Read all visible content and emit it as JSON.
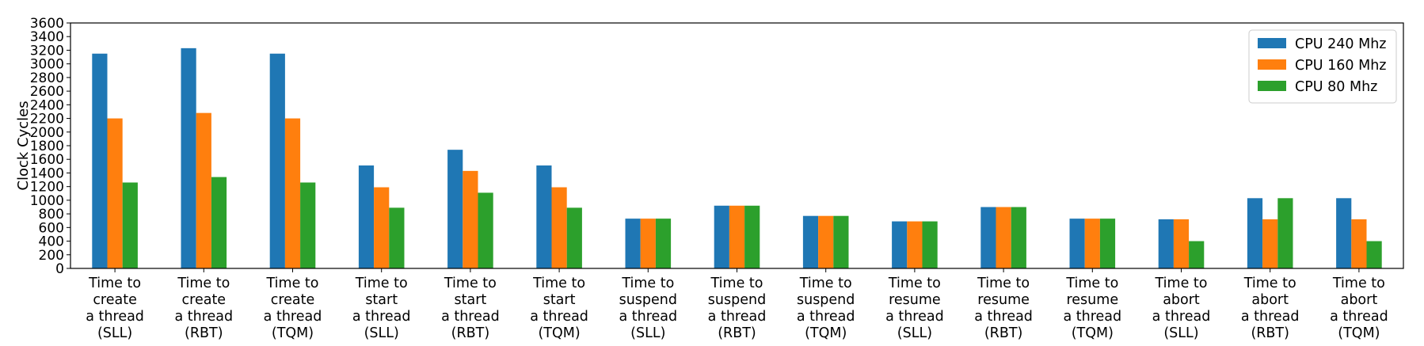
{
  "chart_data": {
    "type": "bar",
    "title": "",
    "xlabel": "",
    "ylabel": "Clock Cycles",
    "ylim": [
      0,
      3600
    ],
    "ytick_step": 200,
    "grid": false,
    "legend_position": "top-right",
    "categories": [
      [
        "Time to",
        "create",
        "a thread",
        "(SLL)"
      ],
      [
        "Time to",
        "create",
        "a thread",
        "(RBT)"
      ],
      [
        "Time to",
        "create",
        "a thread",
        "(TQM)"
      ],
      [
        "Time to",
        "start",
        "a thread",
        "(SLL)"
      ],
      [
        "Time to",
        "start",
        "a thread",
        "(RBT)"
      ],
      [
        "Time to",
        "start",
        "a thread",
        "(TQM)"
      ],
      [
        "Time to",
        "suspend",
        "a thread",
        "(SLL)"
      ],
      [
        "Time to",
        "suspend",
        "a thread",
        "(RBT)"
      ],
      [
        "Time to",
        "suspend",
        "a thread",
        "(TQM)"
      ],
      [
        "Time to",
        "resume",
        "a thread",
        "(SLL)"
      ],
      [
        "Time to",
        "resume",
        "a thread",
        "(RBT)"
      ],
      [
        "Time to",
        "resume",
        "a thread",
        "(TQM)"
      ],
      [
        "Time to",
        "abort",
        "a thread",
        "(SLL)"
      ],
      [
        "Time to",
        "abort",
        "a thread",
        "(RBT)"
      ],
      [
        "Time to",
        "abort",
        "a thread",
        "(TQM)"
      ]
    ],
    "series": [
      {
        "name": "CPU 240 Mhz",
        "color": "#1f77b4",
        "values": [
          3150,
          3230,
          3150,
          1510,
          1740,
          1510,
          730,
          920,
          770,
          690,
          900,
          730,
          720,
          1030,
          1030
        ]
      },
      {
        "name": "CPU 160 Mhz",
        "color": "#ff7f0e",
        "values": [
          2200,
          2280,
          2200,
          1190,
          1430,
          1190,
          730,
          920,
          770,
          690,
          900,
          730,
          720,
          720,
          720
        ]
      },
      {
        "name": "CPU 80 Mhz",
        "color": "#2ca02c",
        "values": [
          1260,
          1340,
          1260,
          890,
          1110,
          890,
          730,
          920,
          770,
          690,
          900,
          730,
          400,
          1030,
          400
        ]
      }
    ]
  }
}
